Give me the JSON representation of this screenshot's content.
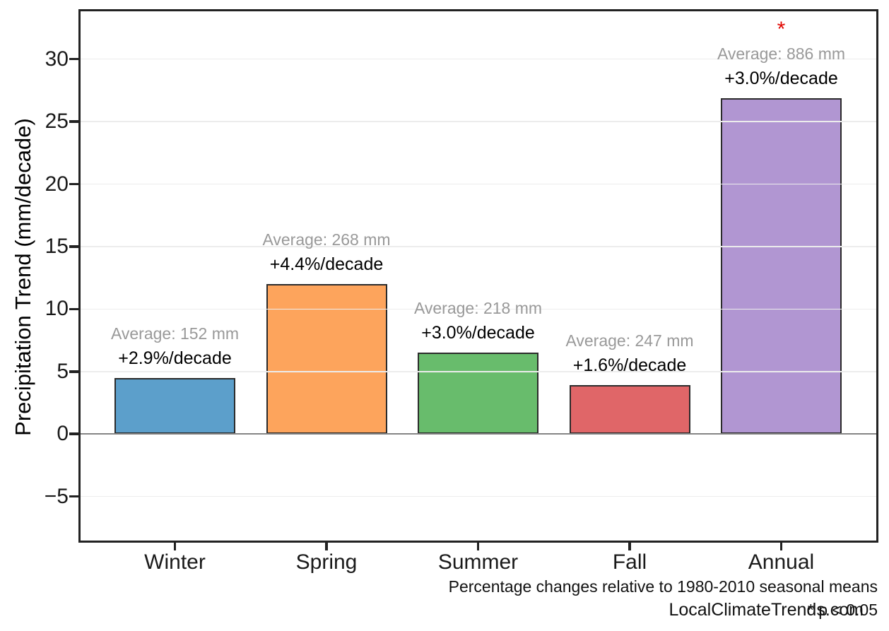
{
  "chart_data": {
    "type": "bar",
    "title": "",
    "xlabel": "",
    "ylabel": "Precipitation Trend (mm/decade)",
    "categories": [
      "Winter",
      "Spring",
      "Summer",
      "Fall",
      "Annual"
    ],
    "values": [
      4.5,
      12.0,
      6.5,
      3.9,
      26.9
    ],
    "bar_colors": [
      "#5C9FCB",
      "#FDA45C",
      "#68BC6C",
      "#E06668",
      "#B196D2"
    ],
    "bar_edge_color": "#2b2b2b",
    "ylim": [
      -8.7,
      34.0
    ],
    "yticks": [
      {
        "value": -5,
        "label": "−5"
      },
      {
        "value": 0,
        "label": "0"
      },
      {
        "value": 5,
        "label": "5"
      },
      {
        "value": 10,
        "label": "10"
      },
      {
        "value": 15,
        "label": "15"
      },
      {
        "value": 20,
        "label": "20"
      },
      {
        "value": 25,
        "label": "25"
      },
      {
        "value": 30,
        "label": "30"
      }
    ],
    "grid": true,
    "legend_position": "none",
    "zero_line_color": "#858585",
    "annotations": [
      {
        "category": "Winter",
        "average": "Average: 152 mm",
        "trend": "+2.9%/decade",
        "significant": false
      },
      {
        "category": "Spring",
        "average": "Average: 268 mm",
        "trend": "+4.4%/decade",
        "significant": false
      },
      {
        "category": "Summer",
        "average": "Average: 218 mm",
        "trend": "+3.0%/decade",
        "significant": false
      },
      {
        "category": "Fall",
        "average": "Average: 247 mm",
        "trend": "+1.6%/decade",
        "significant": false
      },
      {
        "category": "Annual",
        "average": "Average: 886 mm",
        "trend": "+3.0%/decade",
        "significant": true
      }
    ],
    "average_label_color": "#999999",
    "trend_label_color": "#000000",
    "significance": {
      "marker": "*",
      "color": "#E10600",
      "note": "* p < 0.05"
    },
    "footnote": "Percentage changes relative to 1980-2010 seasonal means",
    "watermark": "LocalClimateTrends.com"
  }
}
